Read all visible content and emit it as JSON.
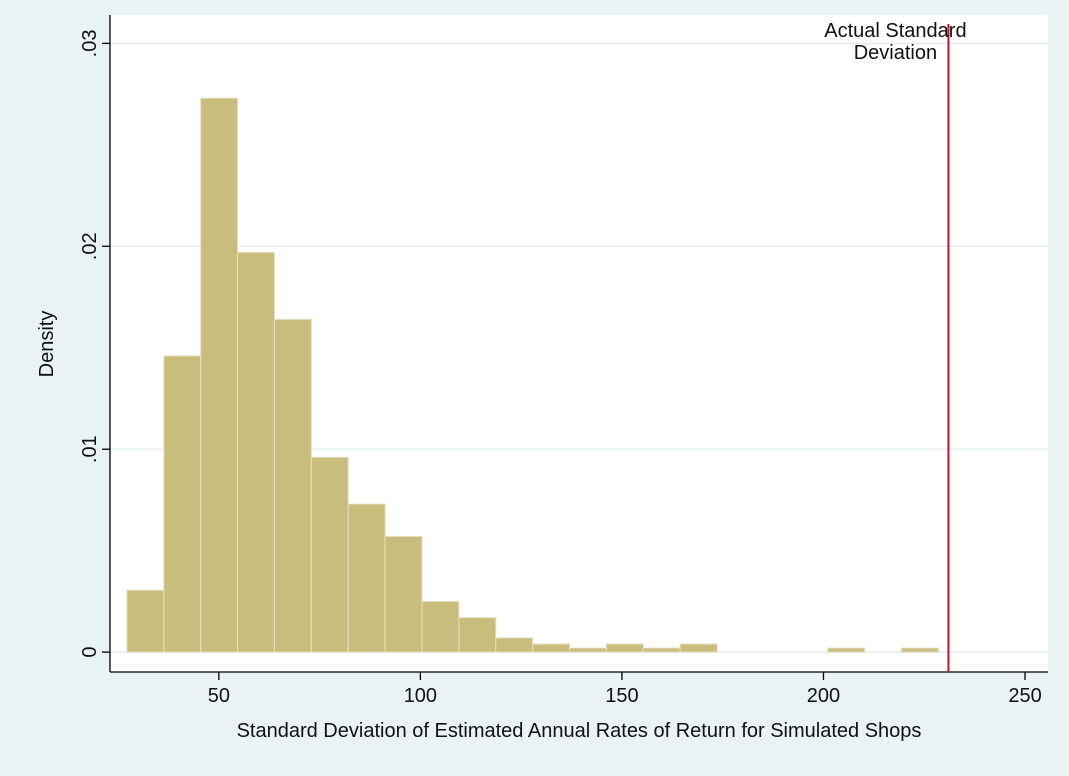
{
  "chart_data": {
    "type": "histogram",
    "x_label": "Standard Deviation of Estimated Annual Rates of Return for Simulated Shops",
    "y_label": "Density",
    "bins": [
      27.2,
      36.35,
      45.5,
      54.65,
      63.8,
      72.95,
      82.1,
      91.25,
      100.4,
      109.55,
      118.7,
      127.85,
      137,
      146.15,
      155.3,
      164.45,
      173.6,
      182.75,
      191.9,
      201.05,
      210.2,
      219.35,
      228.5
    ],
    "values": [
      0.00305,
      0.0146,
      0.0273,
      0.0197,
      0.0164,
      0.0096,
      0.0073,
      0.0057,
      0.0025,
      0.0017,
      0.0007,
      0.0004,
      0.0002,
      0.0004,
      0.0002,
      0.0004,
      0,
      0,
      0,
      0.0002,
      0,
      0.0002
    ],
    "color": "#c8bd7d",
    "xlim": [
      23,
      255.7
    ],
    "ylim": [
      -0.00098,
      0.0314
    ],
    "xticks": [
      50,
      100,
      150,
      200,
      250
    ],
    "yticks": [
      0,
      {
        "value": 0.01,
        "label": ".01"
      },
      {
        "value": 0.02,
        "label": ".02"
      },
      {
        "value": 0.03,
        "label": ".03"
      }
    ],
    "grid": true,
    "reference_line": {
      "x": 231,
      "color": "#c8102e",
      "label": [
        "Actual Standard",
        "Deviation"
      ]
    }
  }
}
